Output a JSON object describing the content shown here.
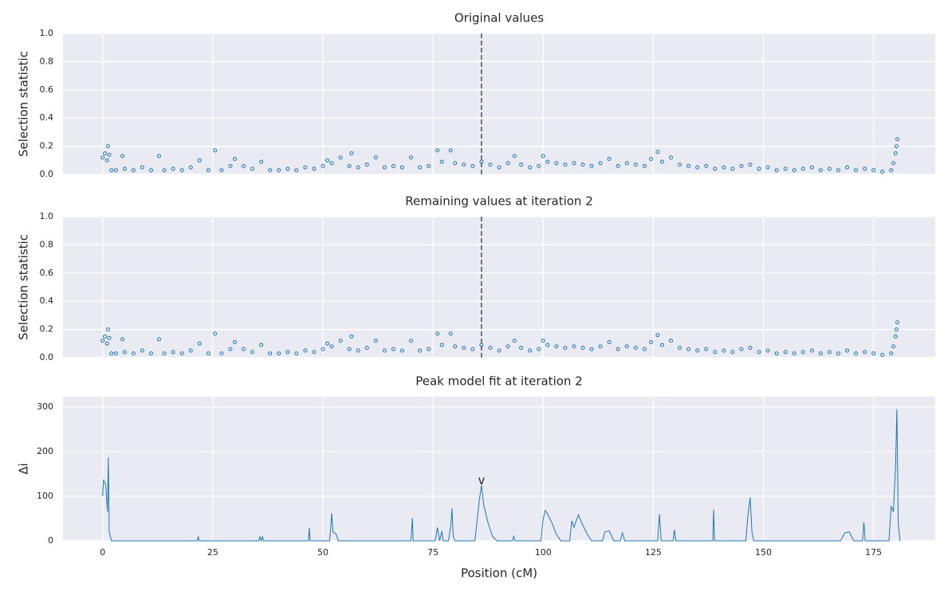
{
  "chart_data": [
    {
      "type": "scatter",
      "title": "Original values",
      "ylabel": "Selection statistic",
      "color": "#1f77b4",
      "grid": true,
      "vline": 86,
      "xlim": [
        -9,
        189
      ],
      "xticks": [
        0,
        25,
        50,
        75,
        100,
        125,
        150,
        175
      ],
      "ylim": [
        0,
        1
      ],
      "yticks": [
        {
          "value": 0,
          "label": "0.0"
        },
        0.2,
        0.4,
        0.6,
        0.8,
        {
          "value": 1,
          "label": "1.0"
        }
      ],
      "x": [
        0,
        0.5,
        1,
        1.2,
        1.5,
        2,
        3,
        4.5,
        5,
        7,
        9,
        11,
        12.8,
        14,
        16,
        18,
        20,
        22,
        24,
        25.5,
        27,
        29,
        30,
        32,
        34,
        36,
        38,
        40,
        42,
        44,
        46,
        48,
        50,
        51,
        52,
        54,
        56,
        56.5,
        58,
        60,
        62,
        64,
        66,
        68,
        70,
        72,
        74,
        76,
        77,
        79,
        80,
        82,
        84,
        86,
        88,
        90,
        92,
        93.5,
        95,
        97,
        99,
        100,
        101,
        103,
        105,
        107,
        109,
        111,
        113,
        115,
        117,
        119,
        121,
        123,
        124.5,
        126,
        127,
        129,
        131,
        133,
        135,
        137,
        139,
        141,
        143,
        145,
        147,
        149,
        151,
        153,
        155,
        157,
        159,
        161,
        163,
        165,
        167,
        169,
        171,
        173,
        175,
        177,
        179,
        179.5,
        180,
        180.2,
        180.4
      ],
      "values": [
        0.12,
        0.15,
        0.1,
        0.2,
        0.14,
        0.03,
        0.03,
        0.13,
        0.04,
        0.03,
        0.05,
        0.03,
        0.13,
        0.03,
        0.04,
        0.03,
        0.05,
        0.1,
        0.03,
        0.17,
        0.03,
        0.06,
        0.11,
        0.06,
        0.04,
        0.09,
        0.03,
        0.03,
        0.04,
        0.03,
        0.05,
        0.04,
        0.06,
        0.1,
        0.08,
        0.12,
        0.06,
        0.15,
        0.05,
        0.07,
        0.12,
        0.05,
        0.06,
        0.05,
        0.12,
        0.05,
        0.06,
        0.17,
        0.09,
        0.17,
        0.08,
        0.07,
        0.06,
        0.09,
        0.07,
        0.05,
        0.08,
        0.13,
        0.07,
        0.05,
        0.06,
        0.13,
        0.09,
        0.08,
        0.07,
        0.08,
        0.07,
        0.06,
        0.08,
        0.11,
        0.06,
        0.08,
        0.07,
        0.06,
        0.11,
        0.16,
        0.09,
        0.12,
        0.07,
        0.06,
        0.05,
        0.06,
        0.04,
        0.05,
        0.04,
        0.06,
        0.07,
        0.04,
        0.05,
        0.03,
        0.04,
        0.03,
        0.04,
        0.05,
        0.03,
        0.04,
        0.03,
        0.05,
        0.03,
        0.04,
        0.03,
        0.02,
        0.03,
        0.08,
        0.15,
        0.2,
        0.25
      ]
    },
    {
      "type": "scatter",
      "title": "Remaining values at iteration 2",
      "ylabel": "Selection statistic",
      "color": "#1f77b4",
      "grid": true,
      "vline": 86,
      "xlim": [
        -9,
        189
      ],
      "xticks": [
        0,
        25,
        50,
        75,
        100,
        125,
        150,
        175
      ],
      "ylim": [
        0,
        1
      ],
      "yticks": [
        {
          "value": 0,
          "label": "0.0"
        },
        0.2,
        0.4,
        0.6,
        0.8,
        {
          "value": 1,
          "label": "1.0"
        }
      ],
      "x": [
        0,
        0.5,
        1,
        1.2,
        1.5,
        2,
        3,
        4.5,
        5,
        7,
        9,
        11,
        12.8,
        14,
        16,
        18,
        20,
        22,
        24,
        25.5,
        27,
        29,
        30,
        32,
        34,
        36,
        38,
        40,
        42,
        44,
        46,
        48,
        50,
        51,
        52,
        54,
        56,
        56.5,
        58,
        60,
        62,
        64,
        66,
        68,
        70,
        72,
        74,
        76,
        77,
        79,
        80,
        82,
        84,
        86,
        88,
        90,
        92,
        93.5,
        95,
        97,
        99,
        100,
        101,
        103,
        105,
        107,
        109,
        111,
        113,
        115,
        117,
        119,
        121,
        123,
        124.5,
        126,
        127,
        129,
        131,
        133,
        135,
        137,
        139,
        141,
        143,
        145,
        147,
        149,
        151,
        153,
        155,
        157,
        159,
        161,
        163,
        165,
        167,
        169,
        171,
        173,
        175,
        177,
        179,
        179.5,
        180,
        180.2,
        180.4
      ],
      "values": [
        0.12,
        0.15,
        0.1,
        0.2,
        0.14,
        0.03,
        0.03,
        0.13,
        0.04,
        0.03,
        0.05,
        0.03,
        0.13,
        0.03,
        0.04,
        0.03,
        0.05,
        0.1,
        0.03,
        0.17,
        0.03,
        0.06,
        0.11,
        0.06,
        0.04,
        0.09,
        0.03,
        0.03,
        0.04,
        0.03,
        0.05,
        0.04,
        0.06,
        0.1,
        0.08,
        0.12,
        0.06,
        0.15,
        0.05,
        0.07,
        0.12,
        0.05,
        0.06,
        0.05,
        0.12,
        0.05,
        0.06,
        0.17,
        0.09,
        0.17,
        0.08,
        0.07,
        0.06,
        0.09,
        0.07,
        0.05,
        0.08,
        0.12,
        0.07,
        0.05,
        0.06,
        0.12,
        0.09,
        0.08,
        0.07,
        0.08,
        0.07,
        0.06,
        0.08,
        0.11,
        0.06,
        0.08,
        0.07,
        0.06,
        0.11,
        0.16,
        0.09,
        0.12,
        0.07,
        0.06,
        0.05,
        0.06,
        0.04,
        0.05,
        0.04,
        0.06,
        0.07,
        0.04,
        0.05,
        0.03,
        0.04,
        0.03,
        0.04,
        0.05,
        0.03,
        0.04,
        0.03,
        0.05,
        0.03,
        0.04,
        0.03,
        0.02,
        0.03,
        0.08,
        0.15,
        0.2,
        0.25
      ]
    },
    {
      "type": "line",
      "title": "Peak model fit at iteration 2",
      "xlabel": "Position (cM)",
      "ylabel": "Δi",
      "color": "#1f77b4",
      "grid": true,
      "xlim": [
        -9,
        189
      ],
      "xticks": [
        0,
        25,
        50,
        75,
        100,
        125,
        150,
        175
      ],
      "ylim": [
        0,
        323
      ],
      "yticks": [
        0,
        100,
        200,
        300
      ],
      "annotation": {
        "text": "v",
        "x": 86,
        "y": 135
      },
      "x": [
        0,
        0.2,
        0.7,
        1,
        1.1,
        1.3,
        1.5,
        2,
        21.5,
        21.7,
        21.9,
        35.5,
        35.7,
        36,
        36.3,
        36.5,
        46.7,
        46.9,
        47.1,
        51.5,
        51.8,
        52,
        52.3,
        53,
        53.5,
        70,
        70.3,
        70.5,
        75.5,
        76,
        76.5,
        77,
        77.3,
        78.5,
        79,
        79.3,
        79.6,
        80,
        84.5,
        85.5,
        86,
        86.5,
        87.5,
        88.5,
        89.5,
        93,
        93.3,
        93.6,
        99.5,
        100,
        100.5,
        101,
        102,
        103,
        104,
        106,
        106.5,
        107,
        107.5,
        108,
        109,
        110,
        111,
        113.5,
        114,
        115,
        116,
        117.5,
        118,
        118.5,
        126,
        126.4,
        126.8,
        129.5,
        129.8,
        130.1,
        138.5,
        138.7,
        138.9,
        146,
        146.5,
        147,
        147.4,
        147.8,
        167.5,
        168.5,
        169.5,
        170,
        170.5,
        172.5,
        172.8,
        173.1,
        178.5,
        179,
        179.5,
        180,
        180.3,
        180.6,
        181
      ],
      "values": [
        100,
        137,
        125,
        80,
        65,
        187,
        20,
        0,
        0,
        10,
        0,
        0,
        10,
        0,
        10,
        0,
        0,
        29,
        0,
        0,
        30,
        62,
        20,
        15,
        0,
        0,
        51,
        0,
        0,
        30,
        0,
        22,
        0,
        0,
        30,
        73,
        10,
        0,
        0,
        90,
        125,
        80,
        40,
        10,
        0,
        0,
        10,
        0,
        0,
        50,
        68,
        60,
        40,
        15,
        0,
        0,
        45,
        30,
        45,
        58,
        35,
        15,
        0,
        0,
        20,
        22,
        0,
        0,
        18,
        0,
        0,
        60,
        0,
        0,
        25,
        0,
        0,
        70,
        0,
        0,
        60,
        97,
        20,
        0,
        0,
        18,
        20,
        10,
        0,
        0,
        42,
        0,
        0,
        78,
        65,
        170,
        295,
        40,
        0
      ]
    }
  ]
}
